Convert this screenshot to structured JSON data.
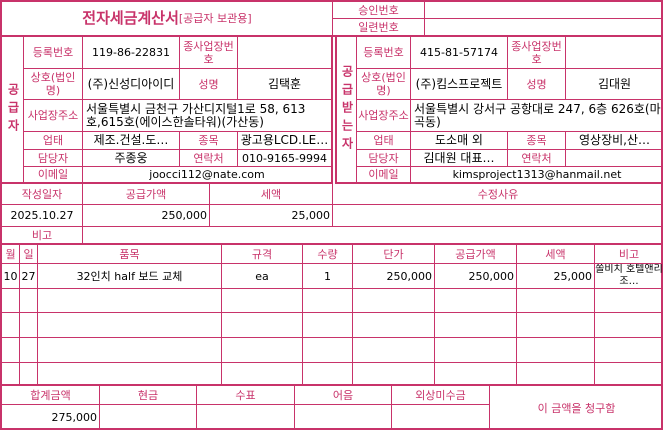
{
  "title": {
    "main": "전자세금계산서",
    "sub": "[공급자 보관용]"
  },
  "header": {
    "approval_label": "승인번호",
    "approval_value": "",
    "serial_label": "일련번호",
    "serial_value": ""
  },
  "labels": {
    "reg_no": "등록번호",
    "sub_biz": "종사업장번호",
    "name": "상호(법인명)",
    "rep": "성명",
    "address": "사업장주소",
    "biz_type": "업태",
    "item": "종목",
    "manager": "담당자",
    "contact": "연락처",
    "email": "이메일"
  },
  "supplier": {
    "side_label": "공급자",
    "reg_no": "119-86-22831",
    "sub_biz": "",
    "name": "(주)신성디아이디",
    "rep": "김택훈",
    "address": "서울특별시 금천구 가산디지털1로 58, 613호,615호(에이스한솔타워)(가산동)",
    "biz_type": "제조.건설.도…",
    "item": "광고용LCD.LE…",
    "manager": "주종웅",
    "contact": "010-9165-9994",
    "email": "joocci112@nate.com"
  },
  "receiver": {
    "side_label": "공급받는자",
    "reg_no": "415-81-57174",
    "sub_biz": "",
    "name": "(주)킴스프로젝트",
    "rep": "김대원",
    "address": "서울특별시 강서구 공항대로 247, 6층 626호(마곡동)",
    "biz_type": "도소매 외",
    "item": "영상장비,산…",
    "manager": "김대원 대표…",
    "contact": "",
    "email": "kimsproject1313@hanmail.net"
  },
  "summary": {
    "date_label": "작성일자",
    "supply_label": "공급가액",
    "tax_label": "세액",
    "reason_label": "수정사유",
    "date": "2025.10.27",
    "supply": "250,000",
    "tax": "25,000",
    "reason": "",
    "note_label": "비고",
    "note": ""
  },
  "items": {
    "headers": [
      "월",
      "일",
      "품목",
      "규격",
      "수량",
      "단가",
      "공급가액",
      "세액",
      "비고"
    ],
    "rows": [
      [
        "10",
        "27",
        "32인치 half 보드 교체",
        "ea",
        "1",
        "250,000",
        "250,000",
        "25,000",
        "쏠비치 호텔앤리조…"
      ]
    ]
  },
  "footer": {
    "headers": [
      "합계금액",
      "현금",
      "수표",
      "어음",
      "외상미수금"
    ],
    "values": [
      "275,000",
      "",
      "",
      "",
      ""
    ],
    "claim_text": "이 금액을 청구함"
  },
  "colors": {
    "accent": "#c8336a"
  }
}
